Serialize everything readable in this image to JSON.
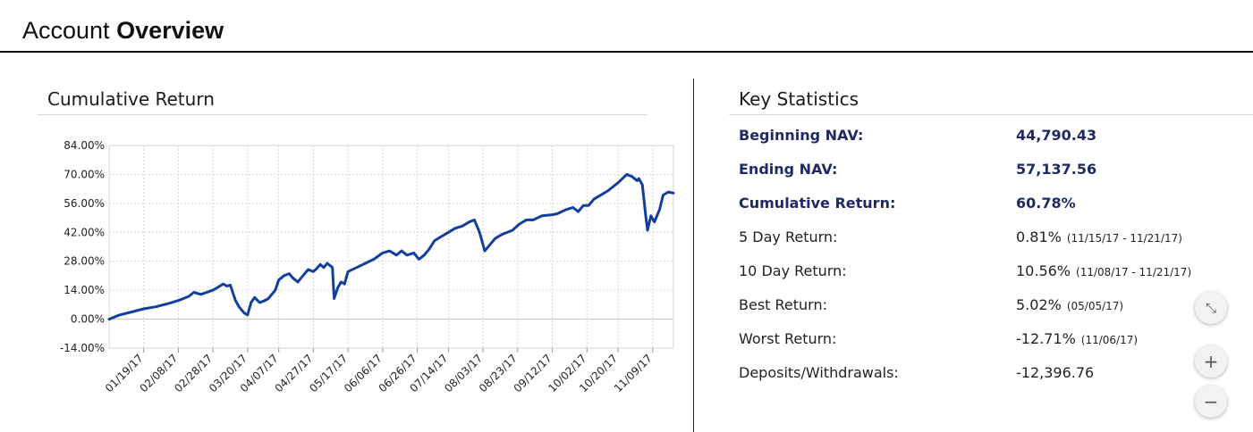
{
  "header": {
    "title_regular": "Account",
    "title_bold": "Overview"
  },
  "cumulative_return": {
    "title": "Cumulative Return"
  },
  "key_statistics": {
    "title": "Key Statistics",
    "rows": [
      {
        "label": "Beginning NAV:",
        "value": "44,790.43",
        "date": "",
        "highlight": true
      },
      {
        "label": "Ending NAV:",
        "value": "57,137.56",
        "date": "",
        "highlight": true
      },
      {
        "label": "Cumulative Return:",
        "value": "60.78%",
        "date": "",
        "highlight": true
      },
      {
        "label": "5 Day Return:",
        "value": "0.81%",
        "date": "(11/15/17 - 11/21/17)",
        "highlight": false
      },
      {
        "label": "10 Day Return:",
        "value": "10.56%",
        "date": "(11/08/17 - 11/21/17)",
        "highlight": false
      },
      {
        "label": "Best Return:",
        "value": "5.02%",
        "date": "(05/05/17)",
        "highlight": false
      },
      {
        "label": "Worst Return:",
        "value": "-12.71%",
        "date": "(11/06/17)",
        "highlight": false
      },
      {
        "label": "Deposits/Withdrawals:",
        "value": "-12,396.76",
        "date": "",
        "highlight": false
      }
    ]
  },
  "controls": [
    {
      "name": "collapse-icon",
      "glyph": "⤡"
    },
    {
      "name": "zoom-in-icon",
      "glyph": "+"
    },
    {
      "name": "zoom-out-icon",
      "glyph": "−"
    }
  ],
  "colors": {
    "line": "#123f9e",
    "highlight_text": "#1f2a64",
    "grid": "#d6d6d6"
  },
  "chart_data": {
    "type": "line",
    "title": "",
    "xlabel": "",
    "ylabel": "",
    "ylim": [
      -14,
      84
    ],
    "yticks": [
      -14,
      0,
      14,
      28,
      42,
      56,
      70,
      84
    ],
    "ytick_labels": [
      "-14.00%",
      "0.00%",
      "14.00%",
      "28.00%",
      "42.00%",
      "56.00%",
      "70.00%",
      "84.00%"
    ],
    "xlim": [
      "2016-12-30",
      "2017-11-21"
    ],
    "xticks": [
      "2017-01-19",
      "2017-02-08",
      "2017-02-28",
      "2017-03-20",
      "2017-04-07",
      "2017-04-27",
      "2017-05-17",
      "2017-06-06",
      "2017-06-26",
      "2017-07-14",
      "2017-08-03",
      "2017-08-23",
      "2017-09-12",
      "2017-10-02",
      "2017-10-20",
      "2017-11-09"
    ],
    "xtick_labels": [
      "01/19/17",
      "02/08/17",
      "02/28/17",
      "03/20/17",
      "04/07/17",
      "04/27/17",
      "05/17/17",
      "06/06/17",
      "06/26/17",
      "07/14/17",
      "08/03/17",
      "08/23/17",
      "09/12/17",
      "10/02/17",
      "10/20/17",
      "11/09/17"
    ],
    "grid": true,
    "series": [
      {
        "name": "",
        "points": [
          [
            "2016-12-30",
            0.0
          ],
          [
            "2017-01-05",
            2.0
          ],
          [
            "2017-01-12",
            3.5
          ],
          [
            "2017-01-19",
            5.0
          ],
          [
            "2017-01-26",
            6.0
          ],
          [
            "2017-02-02",
            7.5
          ],
          [
            "2017-02-08",
            9.0
          ],
          [
            "2017-02-14",
            11.0
          ],
          [
            "2017-02-17",
            13.0
          ],
          [
            "2017-02-21",
            12.0
          ],
          [
            "2017-02-28",
            14.0
          ],
          [
            "2017-03-03",
            15.5
          ],
          [
            "2017-03-06",
            17.0
          ],
          [
            "2017-03-08",
            16.0
          ],
          [
            "2017-03-10",
            16.5
          ],
          [
            "2017-03-13",
            9.0
          ],
          [
            "2017-03-15",
            6.0
          ],
          [
            "2017-03-18",
            3.0
          ],
          [
            "2017-03-20",
            2.0
          ],
          [
            "2017-03-22",
            8.0
          ],
          [
            "2017-03-24",
            10.5
          ],
          [
            "2017-03-27",
            8.0
          ],
          [
            "2017-03-30",
            9.0
          ],
          [
            "2017-04-01",
            10.0
          ],
          [
            "2017-04-05",
            14.0
          ],
          [
            "2017-04-07",
            19.0
          ],
          [
            "2017-04-10",
            21.0
          ],
          [
            "2017-04-13",
            22.0
          ],
          [
            "2017-04-15",
            20.0
          ],
          [
            "2017-04-18",
            18.0
          ],
          [
            "2017-04-20",
            20.0
          ],
          [
            "2017-04-24",
            24.0
          ],
          [
            "2017-04-27",
            23.0
          ],
          [
            "2017-04-29",
            24.5
          ],
          [
            "2017-05-01",
            26.5
          ],
          [
            "2017-05-03",
            25.0
          ],
          [
            "2017-05-05",
            27.0
          ],
          [
            "2017-05-08",
            25.0
          ],
          [
            "2017-05-09",
            10.0
          ],
          [
            "2017-05-11",
            15.0
          ],
          [
            "2017-05-13",
            18.0
          ],
          [
            "2017-05-15",
            17.0
          ],
          [
            "2017-05-17",
            23.0
          ],
          [
            "2017-05-22",
            25.0
          ],
          [
            "2017-05-27",
            27.0
          ],
          [
            "2017-06-01",
            29.0
          ],
          [
            "2017-06-06",
            32.0
          ],
          [
            "2017-06-10",
            33.0
          ],
          [
            "2017-06-14",
            31.0
          ],
          [
            "2017-06-17",
            33.0
          ],
          [
            "2017-06-20",
            31.0
          ],
          [
            "2017-06-24",
            32.0
          ],
          [
            "2017-06-27",
            29.0
          ],
          [
            "2017-06-30",
            31.0
          ],
          [
            "2017-07-03",
            34.0
          ],
          [
            "2017-07-06",
            38.0
          ],
          [
            "2017-07-10",
            40.0
          ],
          [
            "2017-07-14",
            42.0
          ],
          [
            "2017-07-18",
            44.0
          ],
          [
            "2017-07-22",
            45.0
          ],
          [
            "2017-07-26",
            47.0
          ],
          [
            "2017-07-29",
            48.0
          ],
          [
            "2017-08-01",
            42.0
          ],
          [
            "2017-08-04",
            33.0
          ],
          [
            "2017-08-07",
            36.0
          ],
          [
            "2017-08-10",
            39.0
          ],
          [
            "2017-08-14",
            41.0
          ],
          [
            "2017-08-20",
            43.0
          ],
          [
            "2017-08-24",
            46.0
          ],
          [
            "2017-08-28",
            48.0
          ],
          [
            "2017-09-01",
            48.0
          ],
          [
            "2017-09-06",
            50.0
          ],
          [
            "2017-09-12",
            50.5
          ],
          [
            "2017-09-15",
            51.0
          ],
          [
            "2017-09-20",
            53.0
          ],
          [
            "2017-09-24",
            54.0
          ],
          [
            "2017-09-27",
            52.0
          ],
          [
            "2017-09-30",
            55.0
          ],
          [
            "2017-10-03",
            55.0
          ],
          [
            "2017-10-06",
            58.0
          ],
          [
            "2017-10-10",
            60.0
          ],
          [
            "2017-10-14",
            62.0
          ],
          [
            "2017-10-20",
            66.0
          ],
          [
            "2017-10-25",
            70.0
          ],
          [
            "2017-10-28",
            69.0
          ],
          [
            "2017-10-31",
            67.0
          ],
          [
            "2017-11-01",
            68.0
          ],
          [
            "2017-11-03",
            65.0
          ],
          [
            "2017-11-05",
            50.0
          ],
          [
            "2017-11-06",
            43.0
          ],
          [
            "2017-11-08",
            50.0
          ],
          [
            "2017-11-10",
            47.0
          ],
          [
            "2017-11-13",
            53.0
          ],
          [
            "2017-11-15",
            60.0
          ],
          [
            "2017-11-18",
            61.5
          ],
          [
            "2017-11-21",
            61.0
          ]
        ]
      }
    ]
  }
}
